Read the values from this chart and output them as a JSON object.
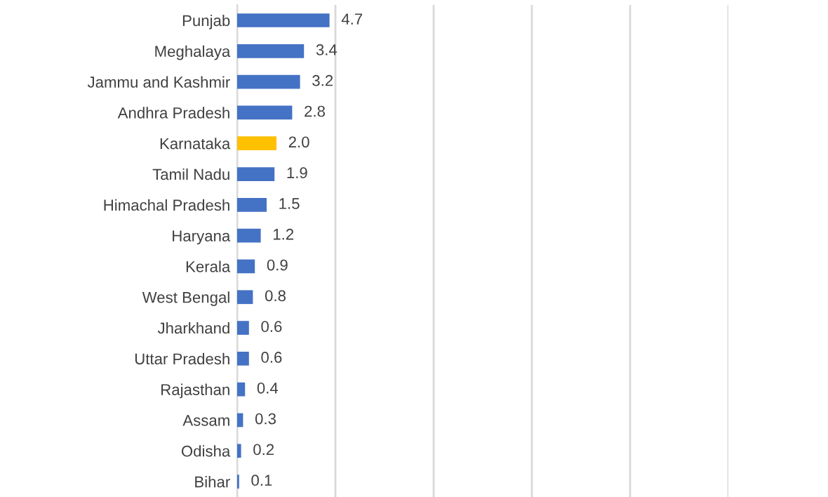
{
  "chart_data": {
    "type": "bar",
    "orientation": "horizontal",
    "categories": [
      "Punjab",
      "Meghalaya",
      "Jammu and Kashmir",
      "Andhra Pradesh",
      "Karnataka",
      "Tamil Nadu",
      "Himachal Pradesh",
      "Haryana",
      "Kerala",
      "West Bengal",
      "Jharkhand",
      "Uttar Pradesh",
      "Rajasthan",
      "Assam",
      "Odisha",
      "Bihar"
    ],
    "values": [
      4.7,
      3.4,
      3.2,
      2.8,
      2.0,
      1.9,
      1.5,
      1.2,
      0.9,
      0.8,
      0.6,
      0.6,
      0.4,
      0.3,
      0.2,
      0.1
    ],
    "colors": [
      "#4472c4",
      "#4472c4",
      "#4472c4",
      "#4472c4",
      "#ffc000",
      "#4472c4",
      "#4472c4",
      "#4472c4",
      "#4472c4",
      "#4472c4",
      "#4472c4",
      "#4472c4",
      "#4472c4",
      "#4472c4",
      "#4472c4",
      "#4472c4"
    ],
    "value_labels": [
      "4.7",
      "3.4",
      "3.2",
      "2.8",
      "2.0",
      "1.9",
      "1.5",
      "1.2",
      "0.9",
      "0.8",
      "0.6",
      "0.6",
      "0.4",
      "0.3",
      "0.2",
      "0.1"
    ],
    "xlim": [
      0,
      25
    ],
    "xticks": [
      {
        "value": 0,
        "label": null
      },
      {
        "value": 5,
        "label": null
      },
      {
        "value": 10,
        "label": null
      },
      {
        "value": 15,
        "label": null
      },
      {
        "value": 20,
        "label": null
      },
      {
        "value": 25,
        "label": null
      }
    ],
    "grid": "x",
    "tick_labels": "y"
  }
}
